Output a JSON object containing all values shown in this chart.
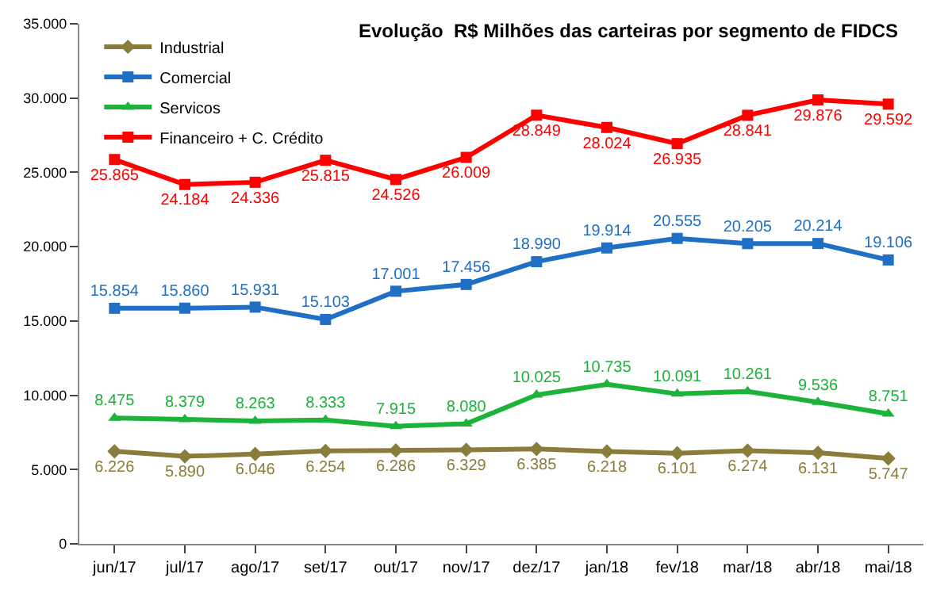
{
  "chart_data": {
    "type": "line",
    "title": "Evolução  R$ Milhões das carteiras por segmento de FIDCS",
    "categories": [
      "jun/17",
      "jul/17",
      "ago/17",
      "set/17",
      "out/17",
      "nov/17",
      "dez/17",
      "jan/18",
      "fev/18",
      "mar/18",
      "abr/18",
      "mai/18"
    ],
    "series": [
      {
        "name": "Industrial",
        "color": "#8a7d3c",
        "marker": "diamond",
        "values": [
          6226,
          5890,
          6046,
          6254,
          6286,
          6329,
          6385,
          6218,
          6101,
          6274,
          6131,
          5747
        ],
        "value_labels": [
          "6.226",
          "5.890",
          "6.046",
          "6.254",
          "6.286",
          "6.329",
          "6.385",
          "6.218",
          "6.101",
          "6.274",
          "6.131",
          "5.747"
        ]
      },
      {
        "name": "Comercial",
        "color": "#1f6fc5",
        "marker": "square",
        "values": [
          15854,
          15860,
          15931,
          15103,
          17001,
          17456,
          18990,
          19914,
          20555,
          20205,
          20214,
          19106
        ],
        "value_labels": [
          "15.854",
          "15.860",
          "15.931",
          "15.103",
          "17.001",
          "17.456",
          "18.990",
          "19.914",
          "20.555",
          "20.205",
          "20.214",
          "19.106"
        ]
      },
      {
        "name": "Servicos",
        "color": "#1db33b",
        "marker": "triangle",
        "values": [
          8475,
          8379,
          8263,
          8333,
          7915,
          8080,
          10025,
          10735,
          10091,
          10261,
          9536,
          8751
        ],
        "value_labels": [
          "8.475",
          "8.379",
          "8.263",
          "8.333",
          "7.915",
          "8.080",
          "10.025",
          "10.735",
          "10.091",
          "10.261",
          "9.536",
          "8.751"
        ]
      },
      {
        "name": "Financeiro + C. Crédito",
        "color": "#ff0000",
        "marker": "square",
        "values": [
          25865,
          24184,
          24336,
          25815,
          24526,
          26009,
          28849,
          28024,
          26935,
          28841,
          29876,
          29592
        ],
        "value_labels": [
          "25.865",
          "24.184",
          "24.336",
          "25.815",
          "24.526",
          "26.009",
          "28.849",
          "28.024",
          "26.935",
          "28.841",
          "29.876",
          "29.592"
        ]
      }
    ],
    "ylim": [
      0,
      35000
    ],
    "yticks": [
      {
        "value": 0,
        "label": "0"
      },
      {
        "value": 5000,
        "label": "5.000"
      },
      {
        "value": 10000,
        "label": "10.000"
      },
      {
        "value": 15000,
        "label": "15.000"
      },
      {
        "value": 20000,
        "label": "20.000"
      },
      {
        "value": 25000,
        "label": "25.000"
      },
      {
        "value": 30000,
        "label": "30.000"
      },
      {
        "value": 35000,
        "label": "35.000"
      }
    ],
    "legend": "top left",
    "line_style": "solid"
  }
}
